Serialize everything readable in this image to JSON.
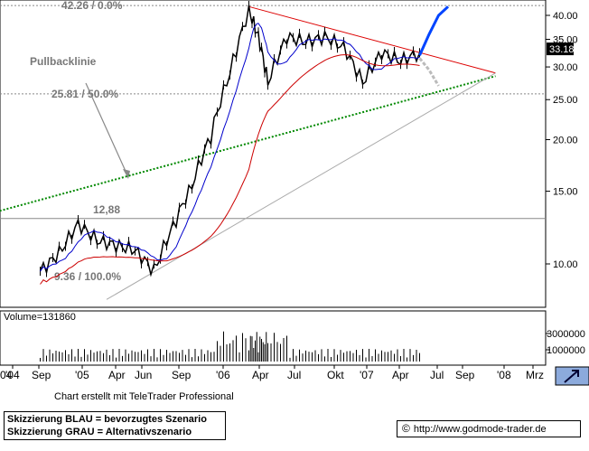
{
  "chart_data": {
    "type": "line",
    "title": "",
    "instrument_last_price": "33.18",
    "xlabel": "",
    "ylabel": "",
    "y_scale": "log",
    "ylim": [
      8.2,
      43
    ],
    "y_ticks": [
      "40.00",
      "35.00",
      "30.00",
      "25.00",
      "20.00",
      "15.00",
      "10.00"
    ],
    "x_ticks": [
      "'04",
      "Sep",
      "'05",
      "Apr",
      "Jun",
      "Sep",
      "'06",
      "Apr",
      "Jul",
      "Okt",
      "'07",
      "Apr",
      "Jul",
      "Sep",
      "'08",
      "Mrz"
    ],
    "left_edge_tick": "04",
    "levels": [
      {
        "label": "42.26 / 0.0%",
        "value": 42.26
      },
      {
        "label": "25.81 / 50.0%",
        "value": 25.81
      },
      {
        "label": "12,88",
        "value": 12.88
      },
      {
        "label": "9.36 / 100.0%",
        "value": 9.36
      }
    ],
    "annotation": "Pullbacklinie",
    "price_series": {
      "dates": [
        "2004-06",
        "2004-08",
        "2004-10",
        "2004-12",
        "2005-02",
        "2005-04",
        "2005-06",
        "2005-08",
        "2005-10",
        "2005-12",
        "2006-02",
        "2006-04",
        "2006-05",
        "2006-06",
        "2006-08",
        "2006-10",
        "2006-12",
        "2007-02",
        "2007-04",
        "2007-06",
        "2007-08",
        "2007-10"
      ],
      "values": [
        9.6,
        10.6,
        12.5,
        11.4,
        11.1,
        10.8,
        9.6,
        12.3,
        15.5,
        20.5,
        29.0,
        41.0,
        35.5,
        27.5,
        35.5,
        34.5,
        35.5,
        33.5,
        27.5,
        32.5,
        31.0,
        32.5
      ]
    },
    "trendlines": [
      {
        "name": "red-downtrend",
        "color": "#dd0000",
        "points": [
          [
            "2006-04",
            42.0
          ],
          [
            "2008-06",
            29.0
          ]
        ]
      },
      {
        "name": "green-pullback",
        "color": "#008800",
        "points": [
          [
            "2004-01",
            13.3
          ],
          [
            "2008-06",
            28.5
          ]
        ]
      },
      {
        "name": "gray-support",
        "color": "#aaaaaa",
        "points": [
          [
            "2005-01",
            8.2
          ],
          [
            "2008-06",
            29.0
          ]
        ]
      }
    ],
    "moving_averages": [
      {
        "name": "ma-blue",
        "color": "#0000cc"
      },
      {
        "name": "ma-red",
        "color": "#cc0000"
      }
    ],
    "scenarios": {
      "blue": {
        "color": "#0044ff",
        "points": [
          [
            "2007-10",
            32.0
          ],
          [
            "2007-11",
            36.0
          ],
          [
            "2007-12",
            40.0
          ],
          [
            "2008-01",
            42.0
          ]
        ]
      },
      "gray": {
        "color": "#bbbbbb",
        "points": [
          [
            "2007-10",
            31.5
          ],
          [
            "2007-11",
            29.5
          ],
          [
            "2007-12",
            27.0
          ]
        ]
      }
    },
    "volume": {
      "label": "Volume=131860",
      "y_ticks": [
        "3000000",
        "1000000"
      ]
    }
  },
  "credit": "Chart erstellt mit TeleTrader Professional",
  "notes": {
    "blue": "Skizzierung BLAU = bevorzugtes Szenario",
    "gray": "Skizzierung GRAU = Alternativszenario"
  },
  "source_url": "http://www.godmode-trader.de",
  "copyright_symbol": "©",
  "colors": {
    "axis": "#000000",
    "grid": "#888888",
    "price": "#000000"
  }
}
